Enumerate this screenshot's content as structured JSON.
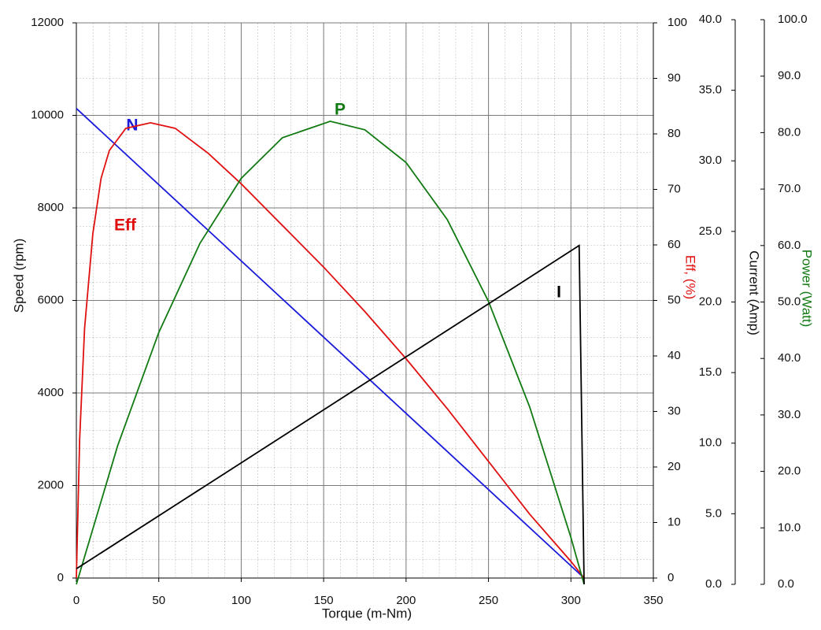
{
  "chart_data": {
    "type": "line",
    "xlabel": "Torque (m-Nm)",
    "ylabel": "Speed (rpm)",
    "y2label": "Eff, (%)",
    "y3label": "Current (Amp)",
    "y4label": "Power (Watt)",
    "xlim": [
      0,
      350
    ],
    "xticks": [
      0,
      50,
      100,
      150,
      200,
      250,
      300,
      350
    ],
    "ylim": [
      0,
      12000
    ],
    "yticks": [
      0,
      2000,
      4000,
      6000,
      8000,
      10000,
      12000
    ],
    "y2lim": [
      0,
      100
    ],
    "y2ticks": [
      0,
      10,
      20,
      30,
      40,
      50,
      60,
      70,
      80,
      90,
      100
    ],
    "y3lim": [
      0,
      40
    ],
    "y3ticks": [
      {
        "value": 0,
        "label": "0.0"
      },
      {
        "value": 5,
        "label": "5.0"
      },
      {
        "value": 10,
        "label": "10.0"
      },
      {
        "value": 15,
        "label": "15.0"
      },
      {
        "value": 20,
        "label": "20.0"
      },
      {
        "value": 25,
        "label": "25.0"
      },
      {
        "value": 30,
        "label": "30.0"
      },
      {
        "value": 35,
        "label": "35.0"
      },
      {
        "value": 40,
        "label": "40.0"
      }
    ],
    "y4lim": [
      0,
      100
    ],
    "y4ticks": [
      {
        "value": 0,
        "label": "0.0"
      },
      {
        "value": 10,
        "label": "10.0"
      },
      {
        "value": 20,
        "label": "20.0"
      },
      {
        "value": 30,
        "label": "30.0"
      },
      {
        "value": 40,
        "label": "40.0"
      },
      {
        "value": 50,
        "label": "50.0"
      },
      {
        "value": 60,
        "label": "60.0"
      },
      {
        "value": 70,
        "label": "70.0"
      },
      {
        "value": 80,
        "label": "80.0"
      },
      {
        "value": 90,
        "label": "90.0"
      },
      {
        "value": 100,
        "label": "100.0"
      }
    ],
    "grid": true,
    "series": [
      {
        "name": "N",
        "color": "#1a1adb",
        "axis": "y",
        "x": [
          0,
          308
        ],
        "values": [
          10150,
          0
        ]
      },
      {
        "name": "Eff",
        "color": "#e01010",
        "axis": "y2",
        "x": [
          0,
          2,
          5,
          10,
          15,
          20,
          30,
          45,
          60,
          80,
          100,
          125,
          150,
          175,
          200,
          225,
          250,
          275,
          300,
          308
        ],
        "values": [
          0,
          25,
          45,
          62,
          72,
          77,
          81,
          82,
          81,
          76.5,
          71,
          63.5,
          56,
          48,
          39.5,
          30.5,
          21,
          11.5,
          3,
          0
        ]
      },
      {
        "name": "P",
        "color": "#127a12",
        "axis": "y4",
        "x": [
          0,
          25,
          50,
          75,
          100,
          125,
          154,
          175,
          200,
          225,
          250,
          275,
          300,
          308
        ],
        "values": [
          0,
          24.5,
          44.6,
          60.4,
          71.9,
          79.1,
          82,
          80.5,
          74.7,
          64.6,
          50.1,
          31.4,
          8.3,
          0
        ]
      },
      {
        "name": "I",
        "color": "#000000",
        "axis": "y3",
        "x": [
          0,
          305,
          308
        ],
        "values": [
          1.1,
          24,
          0
        ]
      }
    ]
  }
}
